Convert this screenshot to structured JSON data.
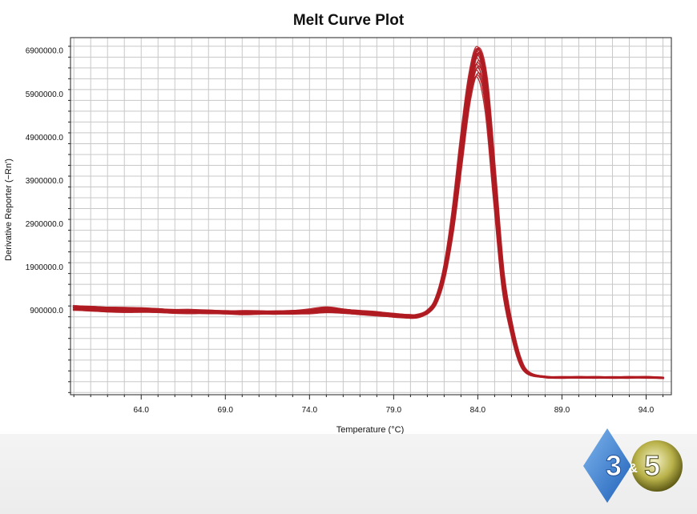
{
  "chart_data": {
    "type": "line",
    "title": "Melt Curve Plot",
    "xlabel": "Temperature (°C)",
    "ylabel": "Derivative Reporter (−Rn')",
    "xlim": [
      59.8,
      95.5
    ],
    "ylim": [
      -1050000,
      7200000
    ],
    "x_ticks": [
      64.0,
      69.0,
      74.0,
      79.0,
      84.0,
      89.0,
      94.0
    ],
    "x_tick_labels": [
      "64.0",
      "69.0",
      "74.0",
      "79.0",
      "84.0",
      "89.0",
      "94.0"
    ],
    "y_ticks": [
      900000,
      1900000,
      2900000,
      3900000,
      4900000,
      5900000,
      6900000
    ],
    "y_tick_labels": [
      "900000.0",
      "1900000.0",
      "2900000.0",
      "3900000.0",
      "4900000.0",
      "5900000.0",
      "6900000.0"
    ],
    "grid": true,
    "legend": "none",
    "line_color": "#b01c22",
    "series": [
      {
        "x": [
          60,
          61,
          62,
          63,
          64,
          65,
          66,
          67,
          68,
          69,
          70,
          71,
          72,
          73,
          74,
          75,
          76,
          77,
          78,
          79,
          80,
          80.5,
          81,
          81.5,
          82,
          82.5,
          83,
          83.5,
          84,
          84.5,
          85,
          85.5,
          86,
          86.5,
          87,
          88,
          89,
          90,
          91,
          92,
          93,
          94,
          95
        ],
        "y": [
          900000,
          880000,
          870000,
          860000,
          850000,
          850000,
          840000,
          830000,
          820000,
          820000,
          810000,
          810000,
          810000,
          820000,
          830000,
          840000,
          830000,
          810000,
          780000,
          740000,
          720000,
          740000,
          820000,
          1050000,
          1650000,
          2700000,
          4200000,
          5700000,
          6300000,
          5500000,
          3400000,
          1400000,
          400000,
          -300000,
          -570000,
          -650000,
          -660000,
          -660000,
          -660000,
          -660000,
          -660000,
          -660000,
          -670000
        ]
      },
      {
        "x": [
          60,
          61,
          62,
          63,
          64,
          65,
          66,
          67,
          68,
          69,
          70,
          71,
          72,
          73,
          74,
          75,
          76,
          77,
          78,
          79,
          80,
          80.5,
          81,
          81.5,
          82,
          82.5,
          83,
          83.5,
          84,
          84.5,
          85,
          85.5,
          86,
          86.5,
          87,
          88,
          89,
          90,
          91,
          92,
          93,
          94,
          95
        ],
        "y": [
          960000,
          940000,
          920000,
          910000,
          900000,
          890000,
          880000,
          870000,
          860000,
          860000,
          850000,
          850000,
          850000,
          860000,
          880000,
          900000,
          880000,
          850000,
          820000,
          780000,
          760000,
          780000,
          860000,
          1100000,
          1750000,
          2900000,
          4500000,
          6000000,
          6800000,
          6000000,
          3800000,
          1600000,
          500000,
          -250000,
          -550000,
          -640000,
          -650000,
          -650000,
          -650000,
          -650000,
          -650000,
          -650000,
          -660000
        ]
      },
      {
        "x": [
          60,
          61,
          62,
          63,
          64,
          65,
          66,
          67,
          68,
          69,
          70,
          71,
          72,
          73,
          74,
          75,
          76,
          77,
          78,
          79,
          80,
          80.5,
          81,
          81.5,
          82,
          82.5,
          83,
          83.5,
          84,
          84.5,
          85,
          85.5,
          86,
          86.5,
          87,
          88,
          89,
          90,
          91,
          92,
          93,
          94,
          95
        ],
        "y": [
          1000000,
          990000,
          980000,
          960000,
          950000,
          940000,
          920000,
          910000,
          900000,
          890000,
          890000,
          880000,
          880000,
          900000,
          920000,
          970000,
          930000,
          900000,
          860000,
          820000,
          800000,
          810000,
          880000,
          1150000,
          1850000,
          3100000,
          4800000,
          6300000,
          7000000,
          6300000,
          4100000,
          1800000,
          600000,
          -200000,
          -530000,
          -630000,
          -640000,
          -640000,
          -640000,
          -640000,
          -640000,
          -640000,
          -650000
        ]
      }
    ]
  },
  "logo": {
    "text_left": "3",
    "text_amp": "&",
    "text_right": "5"
  }
}
